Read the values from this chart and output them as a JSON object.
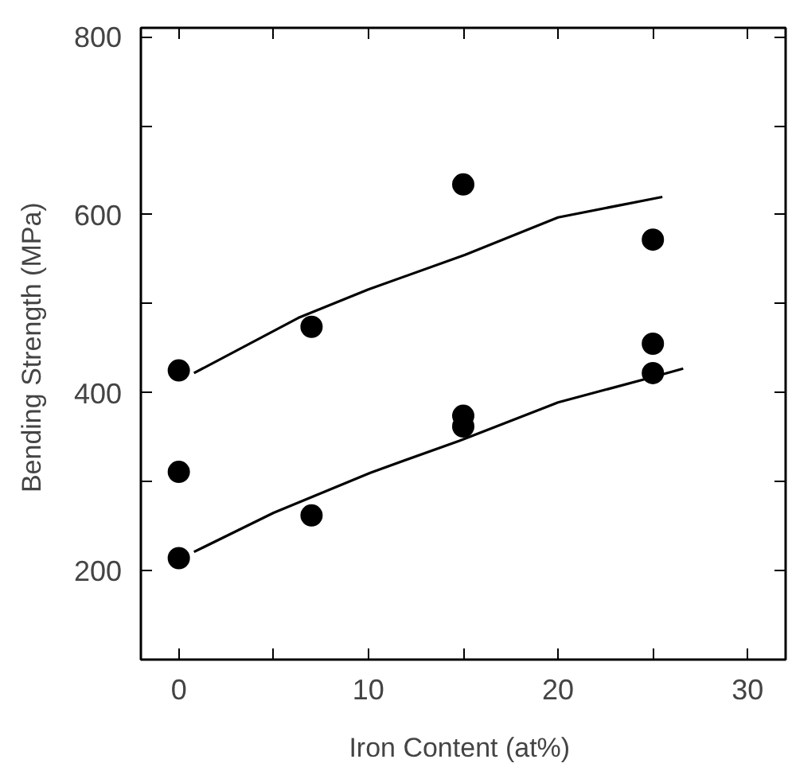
{
  "chart_data": {
    "type": "scatter",
    "xlabel": "Iron Content  (at%)",
    "ylabel": "Bending Strength  (MPa)",
    "xlim": [
      -2,
      32
    ],
    "ylim": [
      100,
      810
    ],
    "xticks": [
      0,
      {
        "value": 5,
        "label": null
      },
      10,
      {
        "value": 15,
        "label": null
      },
      20,
      {
        "value": 25,
        "label": null
      },
      30
    ],
    "yticks": [
      200,
      {
        "value": 300,
        "label": null
      },
      400,
      {
        "value": 500,
        "label": null
      },
      600,
      {
        "value": 700,
        "label": null
      },
      800
    ],
    "grid": false,
    "series": [
      {
        "marker": "circle",
        "color": "#000000",
        "x": [
          0,
          0,
          0,
          7,
          7,
          15,
          15,
          15,
          25,
          25,
          25
        ],
        "values": [
          425,
          311,
          214,
          474,
          262,
          634,
          374,
          362,
          572,
          455,
          422
        ]
      },
      {
        "type": "line",
        "color": "#000000",
        "line_style": "solid",
        "x": [
          0.8,
          6.3,
          10,
          15.1,
          20,
          25.5
        ],
        "values": [
          422,
          484,
          516,
          555,
          597,
          620
        ]
      },
      {
        "type": "line",
        "color": "#000000",
        "line_style": "solid",
        "x": [
          0.8,
          5,
          10.1,
          14.8,
          20,
          24.9,
          26.6
        ],
        "values": [
          221,
          265,
          310,
          346,
          389,
          417,
          427
        ]
      }
    ]
  }
}
